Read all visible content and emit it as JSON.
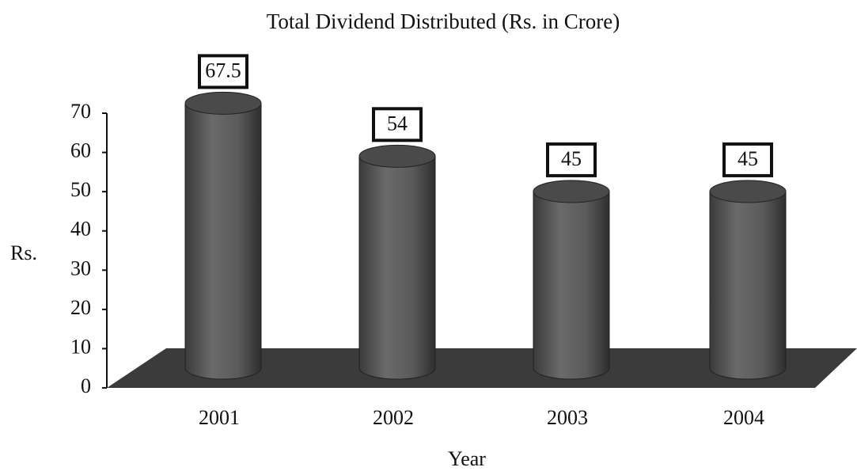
{
  "chart_data": {
    "type": "bar",
    "title": "Total Dividend Distributed (Rs. in Crore)",
    "x_label": "Year",
    "y_label": "Rs.",
    "categories": [
      "2001",
      "2002",
      "2003",
      "2004"
    ],
    "values": [
      67.5,
      54,
      45,
      45
    ],
    "color": "#5a5a5a",
    "ylim": [
      0,
      70
    ],
    "yticks": [
      0,
      10,
      20,
      30,
      40,
      50,
      60,
      70
    ]
  }
}
